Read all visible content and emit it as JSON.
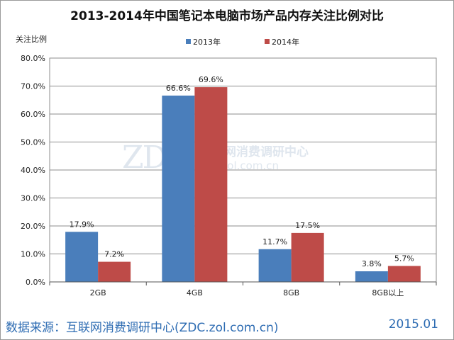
{
  "chart_data": {
    "type": "bar",
    "title": "2013-2014年中国笔记本电脑市场产品内存关注比例对比",
    "ylabel": "关注比例",
    "xlabel": "",
    "categories": [
      "2GB",
      "4GB",
      "8GB",
      "8GB以上"
    ],
    "series": [
      {
        "name": "2013年",
        "color": "#4a7ebb",
        "values": [
          17.9,
          66.6,
          11.7,
          3.8
        ]
      },
      {
        "name": "2014年",
        "color": "#be4b48",
        "values": [
          7.2,
          69.6,
          17.5,
          5.7
        ]
      }
    ],
    "ylim": [
      0,
      80
    ],
    "yticks": [
      "0.0%",
      "10.0%",
      "20.0%",
      "30.0%",
      "40.0%",
      "50.0%",
      "60.0%",
      "70.0%",
      "80.0%"
    ],
    "data_labels": [
      [
        "17.9%",
        "66.6%",
        "11.7%",
        "3.8%"
      ],
      [
        "7.2%",
        "69.6%",
        "17.5%",
        "5.7%"
      ]
    ],
    "grid": true,
    "legend_position": "top"
  },
  "watermark": {
    "logo": "ZDC",
    "cn": "互联网消费调研中心",
    "url": "zdc.zol.com.cn"
  },
  "footer": {
    "source": "数据来源：互联网消费调研中心(ZDC.zol.com.cn)",
    "date": "2015.01"
  }
}
